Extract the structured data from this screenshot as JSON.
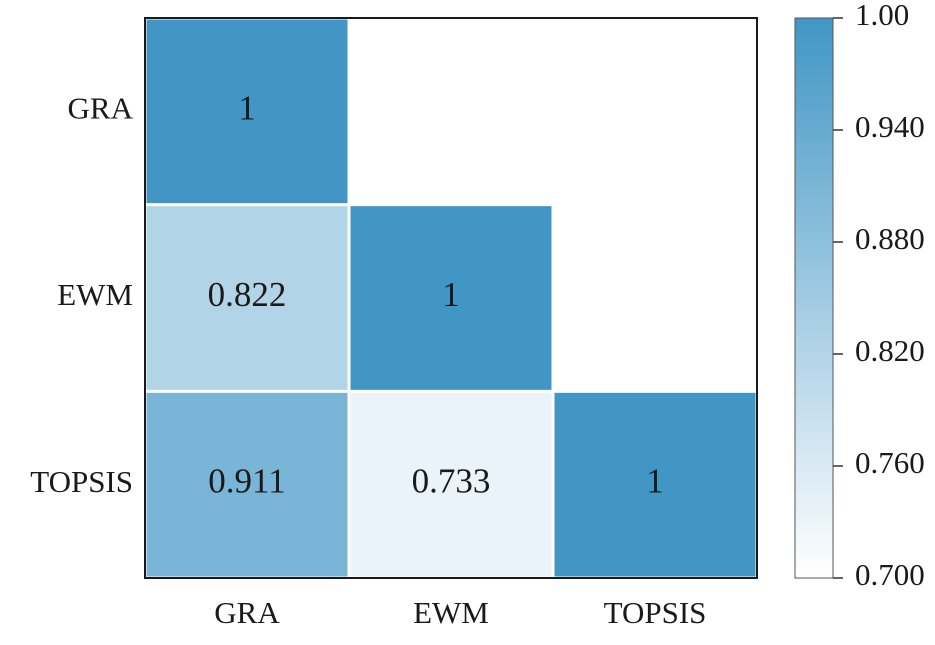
{
  "chart_data": {
    "type": "heatmap",
    "categories": [
      "GRA",
      "EWM",
      "TOPSIS"
    ],
    "row_categories": [
      "GRA",
      "EWM",
      "TOPSIS"
    ],
    "values": [
      [
        1,
        null,
        null
      ],
      [
        0.822,
        1,
        null
      ],
      [
        0.911,
        0.733,
        1
      ]
    ],
    "colormap": [
      "#ffffff",
      "#4196c5"
    ],
    "clim": [
      0.7,
      1
    ],
    "cticks": [
      {
        "value": 0.7,
        "label": "0.700"
      },
      {
        "value": 0.76,
        "label": "0.760"
      },
      {
        "value": 0.82,
        "label": "0.820"
      },
      {
        "value": 0.88,
        "label": "0.880"
      },
      {
        "value": 0.94,
        "label": "0.940"
      },
      {
        "value": 1,
        "label": "1.00"
      }
    ]
  }
}
